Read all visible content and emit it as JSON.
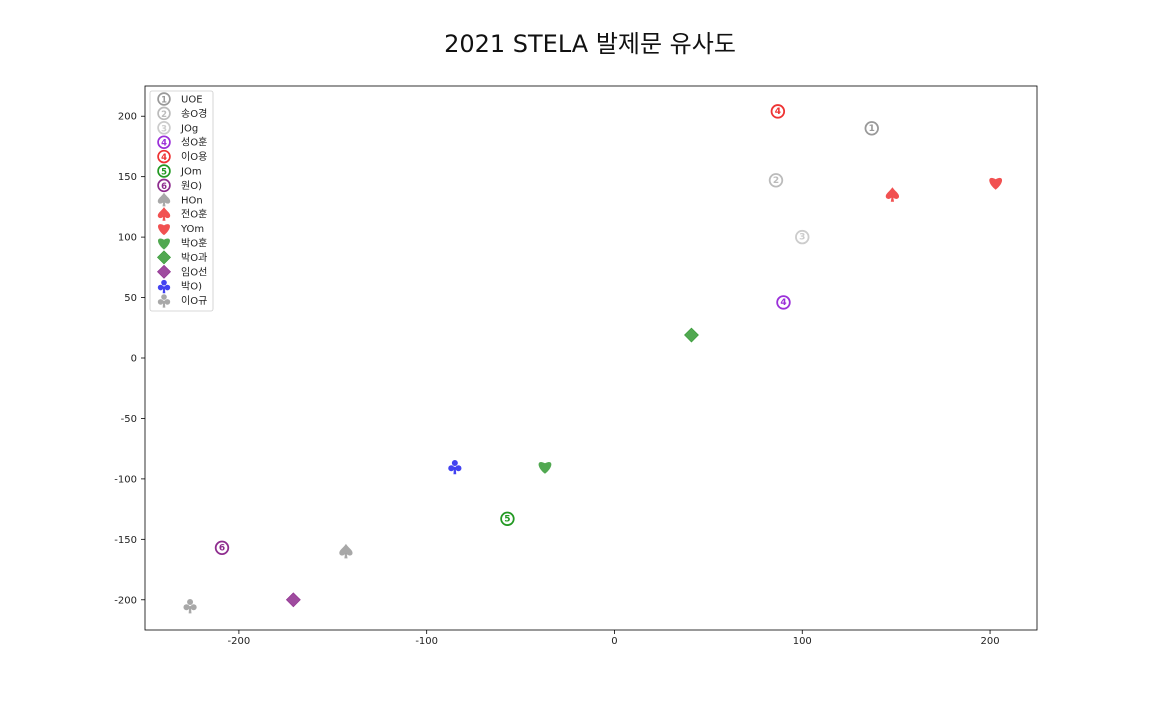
{
  "chart_data": {
    "type": "scatter",
    "title": "2021 STELA 발제문 유사도",
    "xlabel": "",
    "ylabel": "",
    "xlim": [
      -250,
      225
    ],
    "ylim": [
      -225,
      225
    ],
    "xticks": [
      -200,
      -100,
      0,
      100,
      200
    ],
    "xtick_labels": [
      "-200",
      "-100",
      "0",
      "100",
      "200"
    ],
    "yticks": [
      -200,
      -150,
      -100,
      -50,
      0,
      50,
      100,
      150,
      200
    ],
    "ytick_labels": [
      "-200",
      "-150",
      "-100",
      "-50",
      "0",
      "50",
      "100",
      "150",
      "200"
    ],
    "grid": false,
    "legend_position": "top-left",
    "series": [
      {
        "name": "UOE",
        "marker": "①",
        "marker_type": "number",
        "color": "#999999",
        "points": [
          {
            "x": 137,
            "y": 190
          }
        ]
      },
      {
        "name": "송O경",
        "marker": "②",
        "marker_type": "number",
        "color": "#bbbbbb",
        "points": [
          {
            "x": 86,
            "y": 147
          }
        ]
      },
      {
        "name": "JOg",
        "marker": "③",
        "marker_type": "number",
        "color": "#cccccc",
        "points": [
          {
            "x": 100,
            "y": 100
          }
        ]
      },
      {
        "name": "성O훈",
        "marker": "④",
        "marker_type": "number",
        "color": "#9b30d9",
        "points": [
          {
            "x": 90,
            "y": 46
          }
        ]
      },
      {
        "name": "이O용",
        "marker": "④",
        "marker_type": "number",
        "color": "#ee3333",
        "points": [
          {
            "x": 87,
            "y": 204
          }
        ]
      },
      {
        "name": "JOm",
        "marker": "⑤",
        "marker_type": "number",
        "color": "#229922",
        "points": [
          {
            "x": -57,
            "y": -133
          }
        ]
      },
      {
        "name": "원O)",
        "marker": "⑥",
        "marker_type": "number",
        "color": "#8e2c8e",
        "points": [
          {
            "x": -209,
            "y": -157
          }
        ]
      },
      {
        "name": "HOn",
        "marker": "spade",
        "marker_type": "shape",
        "color": "#999999",
        "points": [
          {
            "x": -143,
            "y": -160
          }
        ]
      },
      {
        "name": "전O훈",
        "marker": "spade",
        "marker_type": "shape",
        "color": "#ee3333",
        "points": [
          {
            "x": 148,
            "y": 135
          }
        ]
      },
      {
        "name": "YOm",
        "marker": "heart",
        "marker_type": "shape",
        "color": "#ee3333",
        "points": [
          {
            "x": 203,
            "y": 145
          }
        ]
      },
      {
        "name": "박O훈",
        "marker": "heart",
        "marker_type": "shape",
        "color": "#339933",
        "points": [
          {
            "x": -37,
            "y": -90
          }
        ]
      },
      {
        "name": "박O과",
        "marker": "diamond",
        "marker_type": "shape",
        "color": "#339933",
        "points": [
          {
            "x": 41,
            "y": 19
          }
        ]
      },
      {
        "name": "임O선",
        "marker": "diamond",
        "marker_type": "shape",
        "color": "#8e2c8e",
        "points": [
          {
            "x": -171,
            "y": -200
          }
        ]
      },
      {
        "name": "박O)",
        "marker": "club",
        "marker_type": "shape",
        "color": "#2222ee",
        "points": [
          {
            "x": -85,
            "y": -90
          }
        ]
      },
      {
        "name": "이O규",
        "marker": "club",
        "marker_type": "shape",
        "color": "#999999",
        "points": [
          {
            "x": -226,
            "y": -205
          }
        ]
      }
    ]
  }
}
